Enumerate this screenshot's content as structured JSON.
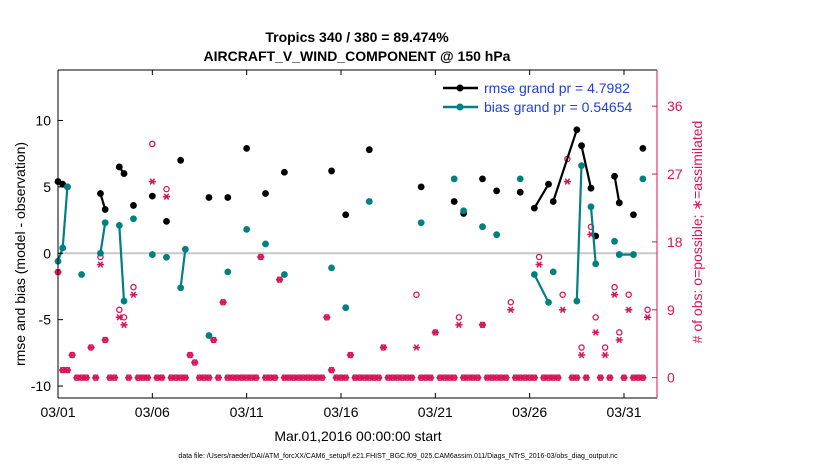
{
  "chart_data": {
    "type": "line",
    "title": "Tropics 340 / 380 = 89.474%",
    "subtitle": "AIRCRAFT_V_WIND_COMPONENT @ 150 hPa",
    "xlabel": "Mar.01,2016 00:00:00 start",
    "ylabel": "rmse and bias (model - observation)",
    "ylabel_right": "# of obs: o=possible; ∗=assimilated",
    "footer": "data file: /Users/raeder/DAI/ATM_forcXX/CAM6_setup/f.e21.FHIST_BGC.f09_025.CAM6assim.011/Diags_NTrS_2016-03/obs_diag_output.nc",
    "xlim": [
      0,
      31.75
    ],
    "ylim": [
      -10.9,
      13.8
    ],
    "ylim_right": [
      -2.7,
      40.8
    ],
    "x_ticks": [
      0,
      5,
      10,
      15,
      20,
      25,
      30
    ],
    "x_tick_labels": [
      "03/01",
      "03/06",
      "03/11",
      "03/16",
      "03/21",
      "03/26",
      "03/31"
    ],
    "y_ticks": [
      -10,
      -5,
      0,
      5,
      10
    ],
    "y_right_ticks": [
      0,
      9,
      18,
      27,
      36
    ],
    "grid": false,
    "legend": "top-right",
    "colors": {
      "rmse": "#000000",
      "bias": "#008080",
      "obs": "#d6145a",
      "zero_line": "#c8c8c8"
    },
    "series": [
      {
        "name": "rmse grand pr = 4.7982",
        "x": [
          0,
          0.25,
          0.5,
          2.25,
          2.5,
          3.25,
          3.5,
          4.0,
          5.0,
          5.75,
          6.5,
          8.0,
          9.0,
          10.0,
          11.0,
          12.0,
          14.5,
          15.25,
          16.5,
          19.25,
          21.0,
          21.5,
          22.5,
          23.25,
          24.5,
          25.25,
          26.0,
          26.25,
          27.5,
          27.75,
          28.25,
          28.5,
          29.5,
          29.75,
          30.5,
          31.0
        ],
        "y": [
          5.4,
          5.2,
          5.0,
          4.5,
          3.3,
          6.5,
          6.0,
          3.6,
          4.3,
          2.4,
          7.0,
          4.2,
          4.2,
          7.9,
          4.5,
          6.1,
          6.2,
          2.9,
          7.8,
          5.0,
          3.9,
          3.0,
          5.6,
          4.7,
          4.6,
          3.4,
          5.2,
          3.9,
          9.3,
          8.1,
          4.9,
          1.3,
          5.8,
          3.8,
          2.9,
          7.9
        ],
        "segments": [
          [
            0,
            2
          ],
          [
            3,
            4
          ],
          [
            5,
            6
          ],
          [
            25,
            26
          ],
          [
            27,
            28
          ],
          [
            29,
            30
          ],
          [
            32,
            33
          ]
        ]
      },
      {
        "name": "bias grand pr = 0.54654",
        "x": [
          0,
          0.25,
          0.5,
          1.25,
          2.25,
          2.5,
          3.25,
          3.5,
          4.0,
          5.0,
          5.75,
          6.5,
          6.75,
          8.0,
          9.0,
          10.0,
          11.0,
          12.0,
          14.5,
          15.25,
          16.5,
          19.25,
          21.0,
          21.5,
          22.5,
          23.25,
          24.5,
          25.25,
          26.0,
          26.25,
          27.5,
          27.75,
          28.25,
          28.5,
          29.5,
          29.75,
          30.5,
          31.0
        ],
        "y": [
          -0.6,
          0.4,
          5.0,
          -1.6,
          0.0,
          2.3,
          2.1,
          -3.6,
          2.6,
          -0.1,
          -0.3,
          -2.6,
          0.3,
          -6.2,
          -1.4,
          1.8,
          0.7,
          -1.6,
          -1.1,
          -4.1,
          3.9,
          2.3,
          5.6,
          3.2,
          2.0,
          1.4,
          5.6,
          -1.6,
          -3.7,
          -1.4,
          -3.6,
          6.6,
          3.5,
          -0.8,
          0.9,
          -0.1,
          -0.1,
          5.6
        ],
        "segments": [
          [
            0,
            2
          ],
          [
            4,
            5
          ],
          [
            6,
            7
          ],
          [
            11,
            12
          ],
          [
            27,
            28
          ],
          [
            30,
            31
          ],
          [
            32,
            33
          ],
          [
            35,
            36
          ]
        ]
      }
    ],
    "obs_possible": {
      "x": [
        0,
        0.25,
        0.5,
        0.75,
        1.0,
        1.25,
        1.5,
        1.75,
        2.0,
        2.25,
        2.5,
        2.75,
        3.0,
        3.25,
        3.5,
        3.75,
        4.0,
        4.25,
        4.5,
        4.75,
        5.0,
        5.25,
        5.5,
        5.75,
        6.0,
        6.25,
        6.5,
        6.75,
        7.0,
        7.25,
        7.5,
        7.75,
        8.0,
        8.25,
        8.5,
        8.75,
        9.0,
        9.25,
        9.5,
        9.75,
        10.0,
        10.25,
        10.5,
        10.75,
        11.0,
        11.25,
        11.5,
        11.75,
        12.0,
        12.25,
        12.5,
        12.75,
        13.0,
        13.25,
        13.5,
        13.75,
        14.0,
        14.25,
        14.5,
        14.75,
        15.0,
        15.25,
        15.5,
        15.75,
        16.0,
        16.25,
        16.5,
        16.75,
        17.0,
        17.25,
        17.5,
        17.75,
        18.0,
        18.25,
        18.5,
        18.75,
        19.0,
        19.25,
        19.5,
        19.75,
        20.0,
        20.25,
        20.5,
        20.75,
        21.0,
        21.25,
        21.5,
        21.75,
        22.0,
        22.25,
        22.5,
        22.75,
        23.0,
        23.25,
        23.5,
        23.75,
        24.0,
        24.25,
        24.5,
        24.75,
        25.0,
        25.25,
        25.5,
        25.75,
        26.0,
        26.25,
        26.5,
        26.75,
        27.0,
        27.25,
        27.5,
        27.75,
        28.0,
        28.25,
        28.5,
        28.75,
        29.0,
        29.25,
        29.5,
        29.75,
        30.0,
        30.25,
        30.5,
        30.75,
        31.0,
        31.25
      ],
      "y": [
        14,
        1,
        1,
        3,
        0,
        0,
        0,
        4,
        0,
        16,
        5,
        0,
        0,
        9,
        8,
        0,
        12,
        0,
        0,
        0,
        31,
        0,
        0,
        25,
        0,
        0,
        0,
        0,
        3,
        2,
        0,
        0,
        0,
        5,
        0,
        10,
        0,
        0,
        0,
        0,
        0,
        0,
        0,
        16,
        0,
        0,
        0,
        13,
        0,
        0,
        0,
        0,
        0,
        0,
        0,
        0,
        0,
        8,
        1,
        0,
        0,
        0,
        3,
        0,
        0,
        0,
        0,
        0,
        0,
        4,
        0,
        0,
        0,
        0,
        0,
        0,
        11,
        0,
        0,
        0,
        6,
        0,
        0,
        0,
        0,
        8,
        0,
        0,
        0,
        0,
        7,
        0,
        0,
        0,
        0,
        0,
        10,
        0,
        0,
        0,
        0,
        0,
        16,
        0,
        0,
        0,
        0,
        11,
        29,
        0,
        0,
        4,
        0,
        20,
        8,
        0,
        4,
        0,
        12,
        6,
        0,
        11,
        0,
        0,
        0,
        9
      ],
      "note": "0 = no observations"
    },
    "obs_assimilated": {
      "x": [
        0,
        0.25,
        0.5,
        0.75,
        1.0,
        1.25,
        1.5,
        1.75,
        2.0,
        2.25,
        2.5,
        2.75,
        3.0,
        3.25,
        3.5,
        3.75,
        4.0,
        4.25,
        4.5,
        4.75,
        5.0,
        5.25,
        5.5,
        5.75,
        6.0,
        6.25,
        6.5,
        6.75,
        7.0,
        7.25,
        7.5,
        7.75,
        8.0,
        8.25,
        8.5,
        8.75,
        9.0,
        9.25,
        9.5,
        9.75,
        10.0,
        10.25,
        10.5,
        10.75,
        11.0,
        11.25,
        11.5,
        11.75,
        12.0,
        12.25,
        12.5,
        12.75,
        13.0,
        13.25,
        13.5,
        13.75,
        14.0,
        14.25,
        14.5,
        14.75,
        15.0,
        15.25,
        15.5,
        15.75,
        16.0,
        16.25,
        16.5,
        16.75,
        17.0,
        17.25,
        17.5,
        17.75,
        18.0,
        18.25,
        18.5,
        18.75,
        19.0,
        19.25,
        19.5,
        19.75,
        20.0,
        20.25,
        20.5,
        20.75,
        21.0,
        21.25,
        21.5,
        21.75,
        22.0,
        22.25,
        22.5,
        22.75,
        23.0,
        23.25,
        23.5,
        23.75,
        24.0,
        24.25,
        24.5,
        24.75,
        25.0,
        25.25,
        25.5,
        25.75,
        26.0,
        26.25,
        26.5,
        26.75,
        27.0,
        27.25,
        27.5,
        27.75,
        28.0,
        28.25,
        28.5,
        28.75,
        29.0,
        29.25,
        29.5,
        29.75,
        30.0,
        30.25,
        30.5,
        30.75,
        31.0,
        31.25
      ],
      "y": [
        14,
        1,
        1,
        3,
        0,
        0,
        0,
        4,
        0,
        15,
        5,
        0,
        0,
        8,
        7,
        0,
        11,
        0,
        0,
        0,
        26,
        0,
        0,
        24,
        0,
        0,
        0,
        0,
        3,
        2,
        0,
        0,
        0,
        5,
        0,
        10,
        0,
        0,
        0,
        0,
        0,
        0,
        0,
        16,
        0,
        0,
        0,
        13,
        0,
        0,
        0,
        0,
        0,
        0,
        0,
        0,
        0,
        8,
        1,
        0,
        0,
        0,
        3,
        0,
        0,
        0,
        0,
        0,
        0,
        4,
        0,
        0,
        0,
        0,
        0,
        0,
        4,
        0,
        0,
        0,
        6,
        0,
        0,
        0,
        0,
        7,
        0,
        0,
        0,
        0,
        7,
        0,
        0,
        0,
        0,
        0,
        9,
        0,
        0,
        0,
        0,
        0,
        15,
        0,
        0,
        0,
        0,
        9,
        26,
        0,
        0,
        3,
        0,
        19,
        6,
        0,
        3,
        0,
        11,
        5,
        0,
        9,
        0,
        0,
        0,
        8
      ],
      "note": "0 = no observations"
    }
  }
}
